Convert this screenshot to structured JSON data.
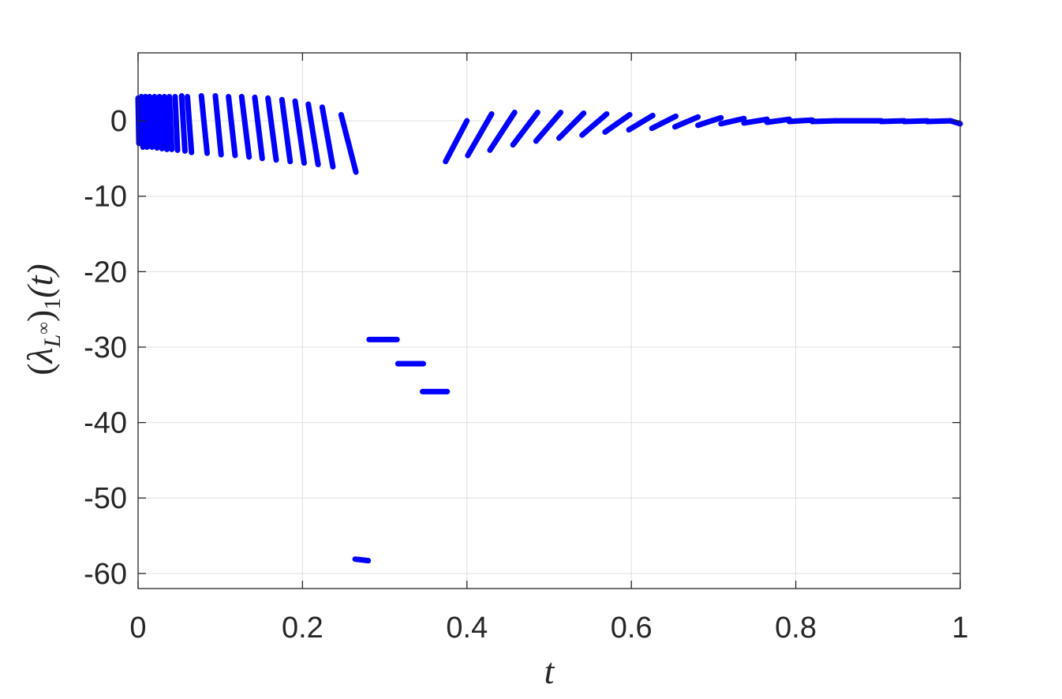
{
  "chart_data": {
    "type": "scatter",
    "xlabel": "t",
    "ylabel": "(λ_{L∞})_1(t)",
    "ylabel_parts": {
      "open": "(",
      "lambda": "λ",
      "sub": "L",
      "sup": "∞",
      "close": ")",
      "index": "1",
      "arg": "(t)"
    },
    "xlim": [
      0,
      1
    ],
    "ylim": [
      -62,
      9
    ],
    "xticks": [
      0,
      0.2,
      0.4,
      0.6,
      0.8,
      1
    ],
    "xtick_labels": [
      "0",
      "0.2",
      "0.4",
      "0.6",
      "0.8",
      "1"
    ],
    "yticks": [
      0,
      -10,
      -20,
      -30,
      -40,
      -50,
      -60
    ],
    "ytick_labels": [
      "0",
      "-10",
      "-20",
      "-30",
      "-40",
      "-50",
      "-60"
    ],
    "grid": true,
    "marker_color": "#0000ff",
    "series": [
      {
        "segments": [
          [
            [
              0.0,
              3.0
            ],
            [
              0.001,
              -3.0
            ]
          ],
          [
            [
              0.004,
              3.2
            ],
            [
              0.006,
              -3.5
            ]
          ],
          [
            [
              0.009,
              3.2
            ],
            [
              0.011,
              -3.5
            ]
          ],
          [
            [
              0.014,
              3.2
            ],
            [
              0.017,
              -3.5
            ]
          ],
          [
            [
              0.02,
              3.2
            ],
            [
              0.023,
              -3.6
            ]
          ],
          [
            [
              0.026,
              3.2
            ],
            [
              0.029,
              -3.7
            ]
          ],
          [
            [
              0.032,
              3.2
            ],
            [
              0.035,
              -3.8
            ]
          ],
          [
            [
              0.038,
              3.2
            ],
            [
              0.041,
              -3.8
            ]
          ],
          [
            [
              0.045,
              3.2
            ],
            [
              0.048,
              -3.9
            ]
          ],
          [
            [
              0.053,
              3.3
            ],
            [
              0.057,
              -4.0
            ]
          ],
          [
            [
              0.06,
              3.2
            ],
            [
              0.065,
              -4.2
            ]
          ],
          [
            [
              0.077,
              3.3
            ],
            [
              0.084,
              -4.3
            ]
          ],
          [
            [
              0.094,
              3.3
            ],
            [
              0.101,
              -4.5
            ]
          ],
          [
            [
              0.11,
              3.2
            ],
            [
              0.118,
              -4.6
            ]
          ],
          [
            [
              0.126,
              3.2
            ],
            [
              0.135,
              -4.8
            ]
          ],
          [
            [
              0.142,
              3.1
            ],
            [
              0.151,
              -5.0
            ]
          ],
          [
            [
              0.158,
              3.0
            ],
            [
              0.168,
              -5.2
            ]
          ],
          [
            [
              0.175,
              2.8
            ],
            [
              0.185,
              -5.4
            ]
          ],
          [
            [
              0.191,
              2.6
            ],
            [
              0.202,
              -5.6
            ]
          ],
          [
            [
              0.207,
              2.2
            ],
            [
              0.219,
              -5.8
            ]
          ],
          [
            [
              0.224,
              1.8
            ],
            [
              0.237,
              -6.1
            ]
          ],
          [
            [
              0.247,
              0.8
            ],
            [
              0.265,
              -6.8
            ]
          ],
          [
            [
              0.264,
              -58.1
            ],
            [
              0.28,
              -58.3
            ]
          ],
          [
            [
              0.281,
              -29.0
            ],
            [
              0.315,
              -29.0
            ]
          ],
          [
            [
              0.316,
              -32.2
            ],
            [
              0.347,
              -32.2
            ]
          ],
          [
            [
              0.346,
              -35.9
            ],
            [
              0.376,
              -35.9
            ]
          ],
          [
            [
              0.374,
              -5.4
            ],
            [
              0.4,
              0.0
            ]
          ],
          [
            [
              0.401,
              -4.6
            ],
            [
              0.43,
              0.9
            ]
          ],
          [
            [
              0.428,
              -3.9
            ],
            [
              0.458,
              1.1
            ]
          ],
          [
            [
              0.456,
              -3.2
            ],
            [
              0.486,
              1.1
            ]
          ],
          [
            [
              0.484,
              -2.7
            ],
            [
              0.514,
              1.1
            ]
          ],
          [
            [
              0.512,
              -2.3
            ],
            [
              0.542,
              1.0
            ]
          ],
          [
            [
              0.54,
              -1.9
            ],
            [
              0.57,
              0.9
            ]
          ],
          [
            [
              0.568,
              -1.5
            ],
            [
              0.598,
              0.8
            ]
          ],
          [
            [
              0.597,
              -1.2
            ],
            [
              0.626,
              0.7
            ]
          ],
          [
            [
              0.625,
              -1.0
            ],
            [
              0.654,
              0.6
            ]
          ],
          [
            [
              0.653,
              -0.8
            ],
            [
              0.681,
              0.5
            ]
          ],
          [
            [
              0.681,
              -0.6
            ],
            [
              0.709,
              0.4
            ]
          ],
          [
            [
              0.709,
              -0.4
            ],
            [
              0.737,
              0.3
            ]
          ],
          [
            [
              0.737,
              -0.3
            ],
            [
              0.765,
              0.2
            ]
          ],
          [
            [
              0.765,
              -0.2
            ],
            [
              0.792,
              0.2
            ]
          ],
          [
            [
              0.792,
              -0.1
            ],
            [
              0.82,
              0.1
            ]
          ],
          [
            [
              0.82,
              -0.1
            ],
            [
              0.848,
              0.0
            ]
          ],
          [
            [
              0.848,
              0.0
            ],
            [
              0.876,
              0.0
            ]
          ],
          [
            [
              0.876,
              0.0
            ],
            [
              0.904,
              0.0
            ]
          ],
          [
            [
              0.904,
              -0.1
            ],
            [
              0.932,
              0.0
            ]
          ],
          [
            [
              0.932,
              -0.1
            ],
            [
              0.96,
              0.0
            ]
          ],
          [
            [
              0.96,
              -0.1
            ],
            [
              0.988,
              0.0
            ]
          ],
          [
            [
              0.988,
              0.0
            ],
            [
              1.0,
              -0.4
            ]
          ]
        ]
      }
    ]
  }
}
